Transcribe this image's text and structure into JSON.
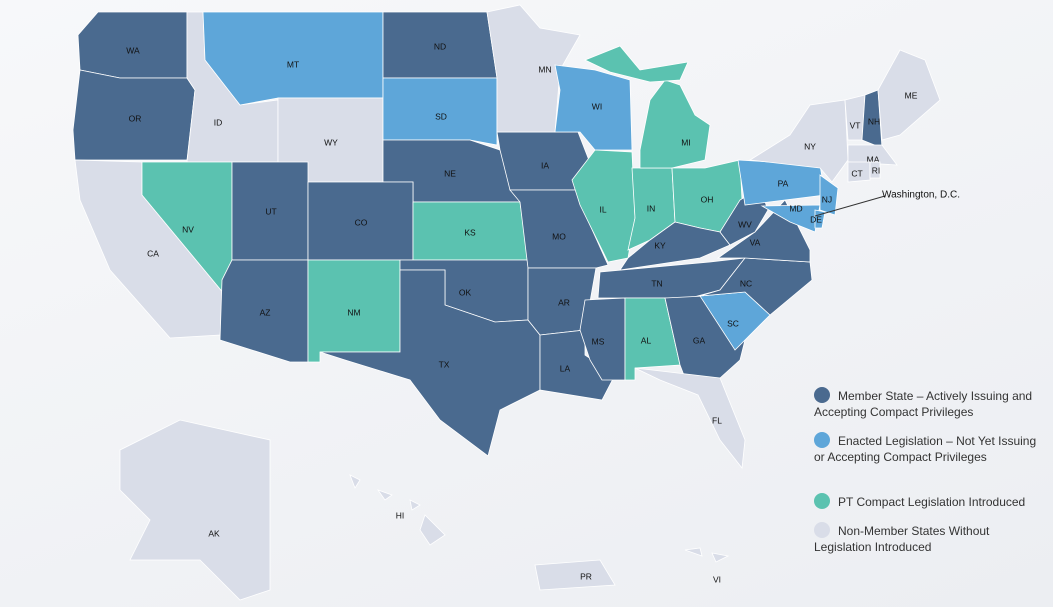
{
  "legend": [
    {
      "label": "Member State – Actively Issuing and Accepting Compact Privileges",
      "color": "#4a6a8f",
      "states": [
        "WA",
        "OR",
        "ND",
        "NE",
        "UT",
        "CO",
        "AZ",
        "IA",
        "MO",
        "OK",
        "TX",
        "AR",
        "LA",
        "MS",
        "KY",
        "TN",
        "WV",
        "VA",
        "NC",
        "GA",
        "NH"
      ]
    },
    {
      "label": "Enacted Legislation – Not Yet Issuing or Accepting Compact Privileges",
      "color": "#5ea6d9",
      "states": [
        "MT",
        "SD",
        "WI",
        "PA",
        "MD",
        "NJ",
        "DE",
        "SC"
      ]
    },
    {
      "label": "PT Compact Legislation Introduced",
      "color": "#5bc2b0",
      "states": [
        "NV",
        "NM",
        "KS",
        "IL",
        "IN",
        "MI",
        "OH",
        "AL"
      ]
    },
    {
      "label": "Non-Member States Without Legislation Introduced",
      "color": "#d9dde8",
      "states": [
        "ID",
        "WY",
        "MN",
        "CA",
        "NY",
        "VT",
        "ME",
        "MA",
        "RI",
        "CT",
        "FL",
        "AK",
        "HI",
        "PR",
        "VI"
      ]
    }
  ],
  "annotation": "Washington, D.C."
}
